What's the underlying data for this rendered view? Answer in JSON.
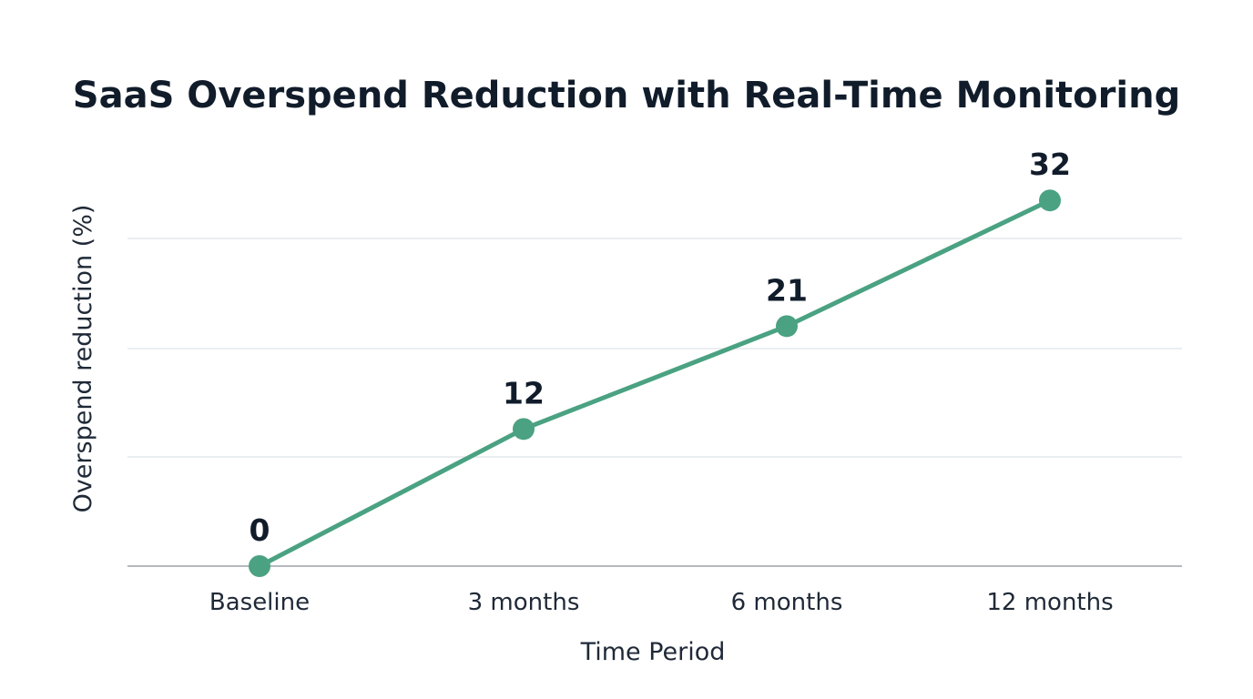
{
  "chart_data": {
    "type": "line",
    "title": "SaaS Overspend Reduction with Real-Time Monitoring",
    "xlabel": "Time Period",
    "ylabel": "Overspend reduction (%)",
    "categories": [
      "Baseline",
      "3 months",
      "6 months",
      "12 months"
    ],
    "series": [
      {
        "values": [
          0,
          12,
          21,
          32
        ],
        "color": "#4aa282"
      }
    ],
    "ylim": [
      0,
      36
    ],
    "grid": true,
    "data_labels": true
  }
}
